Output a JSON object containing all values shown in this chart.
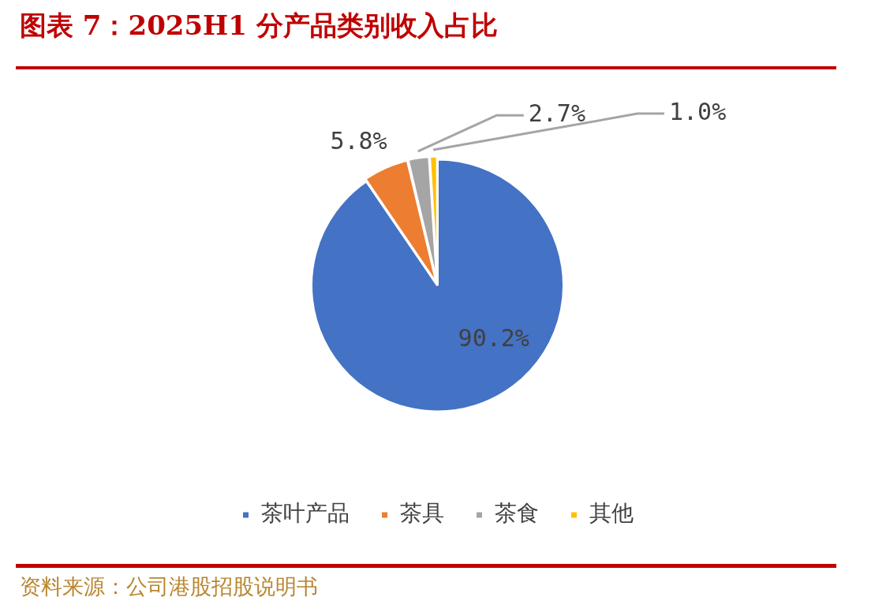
{
  "chart_data": {
    "type": "pie",
    "title": "图表 7：2025H1 分产品类别收入占比",
    "categories": [
      "茶叶产品",
      "茶具",
      "茶食",
      "其他"
    ],
    "values": [
      90.2,
      5.8,
      2.7,
      1.0
    ],
    "colors": [
      "#4472c4",
      "#ed7d31",
      "#a5a5a5",
      "#ffc000"
    ],
    "value_labels": [
      "90.2%",
      "5.8%",
      "2.7%",
      "1.0%"
    ],
    "legend": "bottom",
    "annotations": [
      "资料来源：公司港股招股说明书"
    ]
  }
}
